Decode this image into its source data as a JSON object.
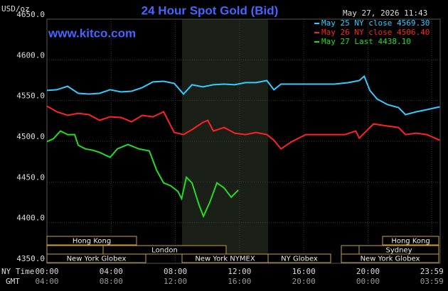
{
  "chart_data": {
    "type": "line",
    "title": "24 Hour Spot Gold (Bid)",
    "y_label": "USD/oz",
    "timestamp": "May 27, 2026 11:43",
    "site": "www.kitco.com",
    "x_row_labels": [
      "NY Time",
      "GMT"
    ],
    "xlim": [
      0,
      24.5
    ],
    "xticks": [
      {
        "value": 0,
        "label": "00:00"
      },
      {
        "value": 4,
        "label": "04:00"
      },
      {
        "value": 8,
        "label": "08:00"
      },
      {
        "value": 12,
        "label": "12:00"
      },
      {
        "value": 16,
        "label": "16:00"
      },
      {
        "value": 20,
        "label": "20:00"
      },
      {
        "value": 23.98,
        "label": "23:59"
      }
    ],
    "gmt_labels": [
      "04:00",
      "08:00",
      "12:00",
      "16:00",
      "20:00",
      "00:00",
      "03:59"
    ],
    "ylim": [
      4350,
      4650
    ],
    "yticks": [
      {
        "value": 4350,
        "label": "4350.0"
      },
      {
        "value": 4400,
        "label": "4400.0"
      },
      {
        "value": 4450,
        "label": "4450.0"
      },
      {
        "value": 4500,
        "label": "4500.0"
      },
      {
        "value": 4550,
        "label": "4550.0"
      },
      {
        "value": 4600,
        "label": "4600.0"
      },
      {
        "value": 4650,
        "label": "4650.0"
      }
    ],
    "grid": true,
    "sessions": [
      "Hong Kong",
      "Hong Kong",
      "London",
      "Sydney",
      "New York Globex",
      "New York NYMEX",
      "NY Globex",
      "New York Globex"
    ],
    "series": [
      {
        "name": "May 25 NY close 4569.30",
        "color": "#33ccff",
        "x": [
          0,
          0.62,
          1.29,
          1.95,
          2.62,
          3.28,
          3.94,
          4.61,
          5.27,
          5.94,
          6.6,
          7.27,
          7.93,
          8.51,
          9.04,
          9.71,
          10.37,
          11.04,
          11.7,
          12.37,
          13.03,
          13.7,
          14.14,
          14.58,
          16.13,
          17.91,
          18.79,
          19.46,
          19.77,
          20.12,
          20.57,
          21.23,
          21.9,
          22.34,
          23.01,
          23.67,
          24.47
        ],
        "values": [
          4562.4,
          4563.3,
          4567.6,
          4558.9,
          4558.0,
          4558.9,
          4563.3,
          4560.6,
          4561.5,
          4565.9,
          4572.9,
          4573.7,
          4571.1,
          4558.0,
          4569.4,
          4566.8,
          4569.4,
          4570.2,
          4569.4,
          4572.0,
          4572.0,
          4574.6,
          4563.3,
          4570.2,
          4570.2,
          4570.2,
          4572.0,
          4574.6,
          4579.9,
          4562.4,
          4551.9,
          4544.9,
          4541.4,
          4532.7,
          4536.2,
          4538.8,
          4542.3
        ]
      },
      {
        "name": "May 26 NY close 4506.40",
        "color": "#ff2222",
        "x": [
          0,
          0.62,
          1.29,
          1.95,
          2.62,
          3.28,
          3.94,
          4.61,
          5.27,
          5.94,
          6.6,
          7.27,
          7.93,
          8.51,
          9.04,
          9.71,
          10.02,
          10.37,
          11.04,
          11.7,
          12.37,
          13.03,
          13.7,
          14.14,
          14.58,
          15.25,
          16.13,
          17.02,
          17.91,
          18.57,
          19.24,
          19.46,
          20.12,
          20.35,
          21.23,
          21.9,
          22.34,
          23.01,
          23.67,
          24.47
        ],
        "values": [
          4543.2,
          4536.2,
          4531.8,
          4534.4,
          4532.7,
          4525.7,
          4530.0,
          4529.2,
          4523.9,
          4531.8,
          4530.0,
          4536.2,
          4510.8,
          4508.2,
          4514.3,
          4523.1,
          4525.7,
          4512.6,
          4516.9,
          4509.9,
          4508.2,
          4510.8,
          4508.2,
          4501.2,
          4490.7,
          4499.5,
          4508.2,
          4508.2,
          4508.2,
          4508.2,
          4512.6,
          4503.8,
          4516.9,
          4521.3,
          4518.7,
          4516.9,
          4508.2,
          4509.9,
          4508.2,
          4501.2
        ]
      },
      {
        "name": "May 27 Last 4438.10",
        "color": "#22dd22",
        "x": [
          0,
          0.4,
          0.84,
          1.29,
          1.73,
          1.95,
          2.39,
          2.84,
          3.28,
          3.94,
          4.39,
          5.05,
          5.72,
          6.38,
          6.83,
          7.27,
          7.71,
          8.16,
          8.39,
          8.69,
          9.04,
          9.49,
          9.75,
          10.15,
          10.59,
          11.04,
          11.48,
          11.92
        ],
        "values": [
          4499.5,
          4503.0,
          4512.6,
          4508.2,
          4508.2,
          4495.1,
          4490.7,
          4489.0,
          4486.3,
          4480.2,
          4490.7,
          4496.0,
          4490.7,
          4488.1,
          4464.5,
          4448.8,
          4445.3,
          4438.3,
          4429.5,
          4455.8,
          4448.8,
          4420.8,
          4407.7,
          4425.2,
          4448.8,
          4442.6,
          4431.3,
          4440.0
        ]
      }
    ]
  }
}
